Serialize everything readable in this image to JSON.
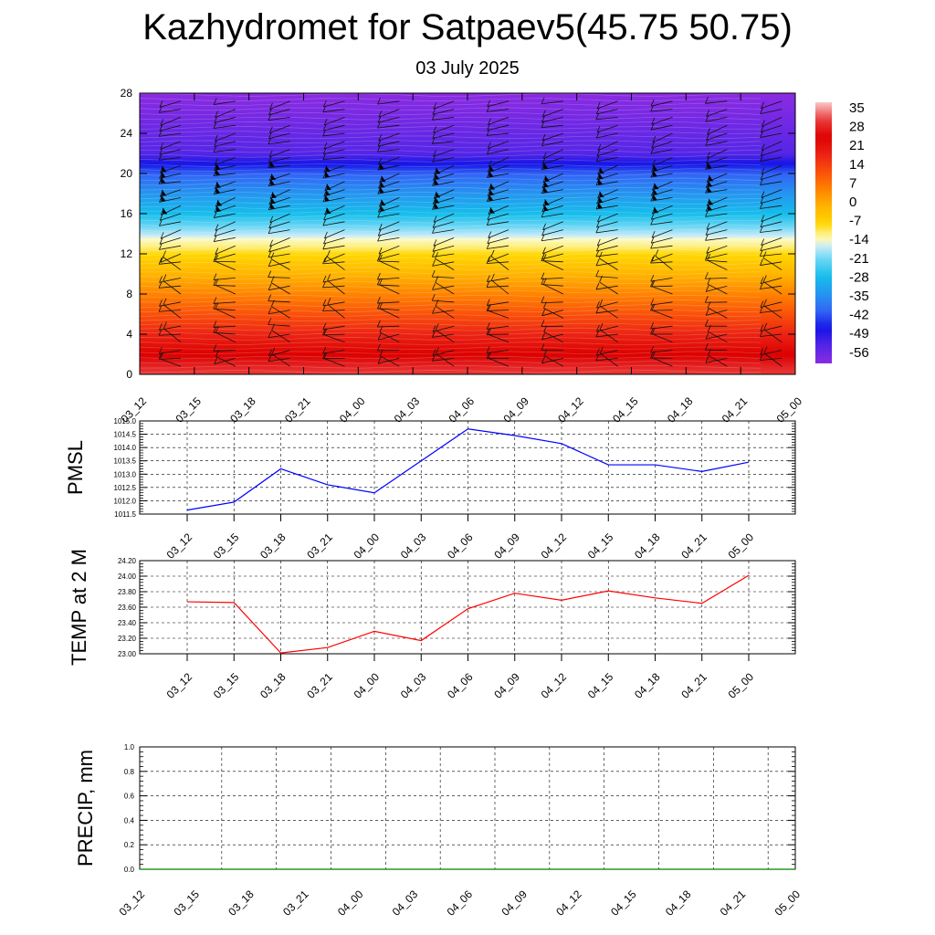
{
  "title": "Kazhydromet for Satpaev5(45.75 50.75)",
  "subtitle": "03 July 2025",
  "time_labels": [
    "03_12",
    "03_15",
    "03_18",
    "03_21",
    "04_00",
    "04_03",
    "04_06",
    "04_09",
    "04_12",
    "04_15",
    "04_18",
    "04_21",
    "05_00"
  ],
  "chart_data": [
    {
      "type": "heatmap",
      "title": "",
      "xlabel": "",
      "ylabel": "",
      "x": [
        "03_12",
        "03_15",
        "03_18",
        "03_21",
        "04_00",
        "04_03",
        "04_06",
        "04_09",
        "04_12",
        "04_15",
        "04_18",
        "04_21",
        "05_00"
      ],
      "y_ticks": [
        0,
        4,
        8,
        12,
        16,
        20,
        24,
        28
      ],
      "ylim": [
        0,
        28
      ],
      "colorbar_labels": [
        "35",
        "28",
        "21",
        "14",
        "7",
        "0",
        "-7",
        "-14",
        "-21",
        "-28",
        "-35",
        "-42",
        "-49",
        "-56"
      ],
      "colorbar_range": [
        -63,
        42
      ],
      "temperature_profile": [
        {
          "height": 0,
          "value": 35
        },
        {
          "height": 4,
          "value": 21
        },
        {
          "height": 8,
          "value": 7
        },
        {
          "height": 12,
          "value": -7
        },
        {
          "height": 13.5,
          "value": -14
        },
        {
          "height": 16,
          "value": -28
        },
        {
          "height": 20,
          "value": -42
        },
        {
          "height": 22,
          "value": -56
        },
        {
          "height": 28,
          "value": -63
        }
      ],
      "overlay": "wind barbs",
      "grid": false
    },
    {
      "type": "line",
      "title": "",
      "ylabel": "PMSL",
      "x": [
        "03_12",
        "03_15",
        "03_18",
        "03_21",
        "04_00",
        "04_03",
        "04_06",
        "04_09",
        "04_12",
        "04_15",
        "04_18",
        "04_21",
        "05_00"
      ],
      "y_ticks": [
        "1011.5",
        "1012.0",
        "1012.5",
        "1013.0",
        "1013.5",
        "1014.0",
        "1014.5",
        "1015.0"
      ],
      "ylim": [
        1011.5,
        1015.0
      ],
      "series": [
        {
          "values": [
            1011.65,
            1011.95,
            1013.2,
            1012.6,
            1012.3,
            1013.5,
            1014.7,
            1014.45,
            1014.15,
            1013.35,
            1013.35,
            1013.1,
            1013.45
          ],
          "color": "#0000ff"
        }
      ],
      "grid": true
    },
    {
      "type": "line",
      "title": "",
      "ylabel": "TEMP at 2 M",
      "x": [
        "03_12",
        "03_15",
        "03_18",
        "03_21",
        "04_00",
        "04_03",
        "04_06",
        "04_09",
        "04_12",
        "04_15",
        "04_18",
        "04_21",
        "05_00"
      ],
      "y_ticks": [
        "23.00",
        "23.20",
        "23.40",
        "23.60",
        "23.80",
        "24.00",
        "24.20"
      ],
      "ylim": [
        23.0,
        24.2
      ],
      "series": [
        {
          "values": [
            23.67,
            23.66,
            23.01,
            23.08,
            23.29,
            23.17,
            23.58,
            23.78,
            23.69,
            23.81,
            23.72,
            23.65,
            24.01
          ],
          "color": "#ff0000"
        }
      ],
      "grid": true
    },
    {
      "type": "line",
      "title": "",
      "ylabel": "PRECIP, mm",
      "x": [
        "03_12",
        "03_15",
        "03_18",
        "03_21",
        "04_00",
        "04_03",
        "04_06",
        "04_09",
        "04_12",
        "04_15",
        "04_18",
        "04_21",
        "05_00"
      ],
      "y_ticks": [
        "0.0",
        "0.2",
        "0.4",
        "0.6",
        "0.8",
        "1.0"
      ],
      "ylim": [
        0,
        1.0
      ],
      "series": [
        {
          "values": [
            0,
            0,
            0,
            0,
            0,
            0,
            0,
            0,
            0,
            0,
            0,
            0,
            0
          ],
          "color": "#008000"
        }
      ],
      "grid": true
    }
  ]
}
